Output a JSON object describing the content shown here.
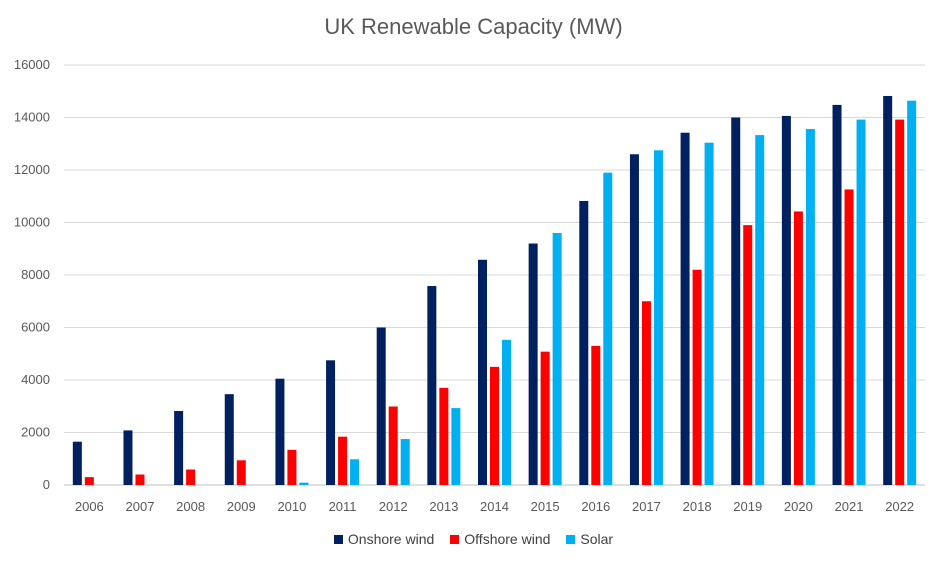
{
  "chart_data": {
    "type": "bar",
    "title": "UK Renewable Capacity (MW)",
    "xlabel": "",
    "ylabel": "",
    "ylim": [
      0,
      16000
    ],
    "yticks": [
      0,
      2000,
      4000,
      6000,
      8000,
      10000,
      12000,
      14000,
      16000
    ],
    "grid": true,
    "legend_position": "bottom",
    "categories": [
      "2006",
      "2007",
      "2008",
      "2009",
      "2010",
      "2011",
      "2012",
      "2013",
      "2014",
      "2015",
      "2016",
      "2017",
      "2018",
      "2019",
      "2020",
      "2021",
      "2022"
    ],
    "series": [
      {
        "name": "Onshore wind",
        "color": "#002060",
        "values": [
          1650,
          2080,
          2820,
          3460,
          4050,
          4750,
          6000,
          7580,
          8580,
          9200,
          10820,
          12600,
          13420,
          14000,
          14060,
          14480,
          14820
        ]
      },
      {
        "name": "Offshore wind",
        "color": "#ff0000",
        "values": [
          300,
          400,
          590,
          940,
          1340,
          1840,
          2990,
          3700,
          4500,
          5080,
          5300,
          7000,
          8200,
          9900,
          10420,
          11260,
          13920
        ]
      },
      {
        "name": "Solar",
        "color": "#00b0f0",
        "values": [
          0,
          0,
          0,
          0,
          90,
          980,
          1750,
          2930,
          5530,
          9600,
          11900,
          12750,
          13040,
          13330,
          13560,
          13920,
          14640
        ]
      }
    ]
  }
}
